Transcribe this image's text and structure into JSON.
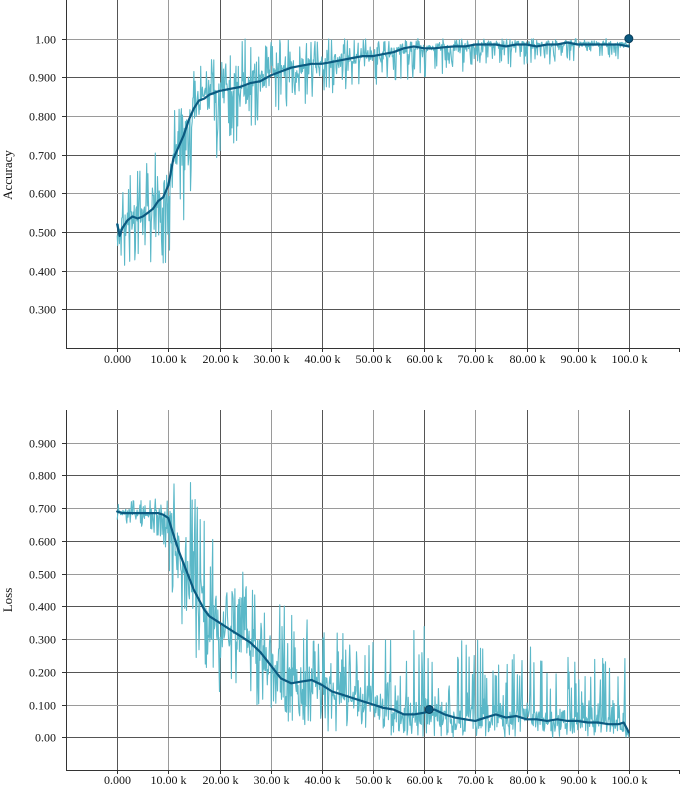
{
  "chart_data": [
    {
      "type": "line",
      "ylabel": "Accuracy",
      "xlabel": "",
      "x_tick_labels": [
        "0.000",
        "10.00 k",
        "20.00 k",
        "30.00 k",
        "40.00 k",
        "50.00 k",
        "60.00 k",
        "70.00 k",
        "80.00 k",
        "90.00 k",
        "100.0 k"
      ],
      "x_ticks": [
        0,
        10000,
        20000,
        30000,
        40000,
        50000,
        60000,
        70000,
        80000,
        90000,
        100000
      ],
      "y_tick_labels": [
        "0.300",
        "0.400",
        "0.500",
        "0.600",
        "0.700",
        "0.800",
        "0.900",
        "1.00"
      ],
      "y_ticks": [
        0.3,
        0.4,
        0.5,
        0.6,
        0.7,
        0.8,
        0.9,
        1.0
      ],
      "xlim": [
        -10000,
        110000
      ],
      "ylim": [
        0.2,
        1.1
      ],
      "grid": true,
      "colors": {
        "raw": "#5bb8c8",
        "smoothed": "#0b5a80"
      },
      "series": [
        {
          "role": "raw",
          "x_range": [
            0,
            100000
          ],
          "envelope_x": [
            0,
            2000,
            5000,
            8000,
            10000,
            12000,
            15000,
            18000,
            20000,
            25000,
            30000,
            35000,
            40000,
            45000,
            50000,
            60000,
            70000,
            80000,
            90000,
            100000
          ],
          "envelope_low": [
            0.38,
            0.4,
            0.42,
            0.42,
            0.42,
            0.48,
            0.6,
            0.65,
            0.7,
            0.75,
            0.8,
            0.82,
            0.85,
            0.87,
            0.88,
            0.9,
            0.92,
            0.93,
            0.94,
            0.95
          ],
          "envelope_high": [
            0.62,
            0.67,
            0.72,
            0.75,
            0.78,
            0.85,
            0.93,
            0.96,
            0.98,
            1.0,
            1.0,
            1.0,
            1.0,
            1.0,
            1.0,
            1.0,
            1.0,
            1.0,
            1.0,
            1.0
          ]
        },
        {
          "role": "smoothed",
          "x": [
            0,
            500,
            1000,
            2000,
            3000,
            4000,
            5000,
            6000,
            7000,
            8000,
            9000,
            10000,
            11000,
            12000,
            13000,
            14000,
            15000,
            16000,
            17000,
            18000,
            19000,
            20000,
            22000,
            24000,
            26000,
            28000,
            30000,
            32000,
            34000,
            36000,
            38000,
            40000,
            42000,
            44000,
            46000,
            48000,
            50000,
            52000,
            54000,
            56000,
            58000,
            60000,
            62000,
            64000,
            66000,
            68000,
            70000,
            72000,
            74000,
            76000,
            78000,
            80000,
            82000,
            84000,
            86000,
            88000,
            90000,
            92000,
            94000,
            96000,
            98000,
            100000
          ],
          "y": [
            0.52,
            0.49,
            0.51,
            0.53,
            0.54,
            0.535,
            0.54,
            0.55,
            0.56,
            0.58,
            0.59,
            0.62,
            0.69,
            0.72,
            0.75,
            0.79,
            0.82,
            0.84,
            0.845,
            0.855,
            0.86,
            0.865,
            0.87,
            0.875,
            0.885,
            0.89,
            0.905,
            0.915,
            0.925,
            0.93,
            0.935,
            0.935,
            0.94,
            0.945,
            0.95,
            0.955,
            0.955,
            0.96,
            0.965,
            0.975,
            0.98,
            0.975,
            0.975,
            0.978,
            0.98,
            0.98,
            0.985,
            0.985,
            0.985,
            0.98,
            0.985,
            0.985,
            0.98,
            0.985,
            0.985,
            0.99,
            0.985,
            0.985,
            0.985,
            0.985,
            0.985,
            0.98
          ]
        }
      ],
      "highlight_point": {
        "x": 100000,
        "y": 1.0
      }
    },
    {
      "type": "line",
      "ylabel": "Loss",
      "xlabel": "",
      "x_tick_labels": [
        "0.000",
        "10.00 k",
        "20.00 k",
        "30.00 k",
        "40.00 k",
        "50.00 k",
        "60.00 k",
        "70.00 k",
        "80.00 k",
        "90.00 k",
        "100.0 k"
      ],
      "x_ticks": [
        0,
        10000,
        20000,
        30000,
        40000,
        50000,
        60000,
        70000,
        80000,
        90000,
        100000
      ],
      "y_tick_labels": [
        "0.00",
        "0.100",
        "0.200",
        "0.300",
        "0.400",
        "0.500",
        "0.600",
        "0.700",
        "0.800",
        "0.900"
      ],
      "y_ticks": [
        0.0,
        0.1,
        0.2,
        0.3,
        0.4,
        0.5,
        0.6,
        0.7,
        0.8,
        0.9
      ],
      "xlim": [
        -10000,
        110000
      ],
      "ylim": [
        -0.1,
        1.0
      ],
      "grid": true,
      "colors": {
        "raw": "#5bb8c8",
        "smoothed": "#0b5a80"
      },
      "series": [
        {
          "role": "raw",
          "x_range": [
            0,
            100000
          ],
          "envelope_x": [
            0,
            5000,
            9000,
            10000,
            12000,
            15000,
            18000,
            20000,
            25000,
            30000,
            35000,
            40000,
            45000,
            50000,
            55000,
            60000,
            65000,
            70000,
            80000,
            90000,
            100000
          ],
          "envelope_low": [
            0.66,
            0.64,
            0.6,
            0.5,
            0.35,
            0.2,
            0.15,
            0.12,
            0.1,
            0.05,
            0.03,
            0.02,
            0.01,
            0.01,
            0.0,
            0.0,
            0.0,
            0.0,
            0.0,
            0.0,
            0.0
          ],
          "envelope_high": [
            0.72,
            0.74,
            0.75,
            0.9,
            0.75,
            0.8,
            0.7,
            0.6,
            0.5,
            0.45,
            0.4,
            0.35,
            0.32,
            0.3,
            0.3,
            0.35,
            0.3,
            0.3,
            0.28,
            0.25,
            0.25
          ]
        },
        {
          "role": "smoothed",
          "x": [
            0,
            1000,
            2000,
            4000,
            6000,
            8000,
            9000,
            10000,
            11000,
            12000,
            13000,
            14000,
            15000,
            16000,
            17000,
            18000,
            20000,
            22000,
            24000,
            26000,
            28000,
            30000,
            32000,
            34000,
            36000,
            38000,
            40000,
            42000,
            44000,
            46000,
            48000,
            50000,
            52000,
            54000,
            56000,
            58000,
            60000,
            62000,
            64000,
            66000,
            68000,
            70000,
            72000,
            74000,
            76000,
            78000,
            80000,
            82000,
            84000,
            86000,
            88000,
            90000,
            92000,
            94000,
            96000,
            98000,
            99000,
            100000
          ],
          "y": [
            0.69,
            0.685,
            0.685,
            0.685,
            0.685,
            0.685,
            0.68,
            0.67,
            0.62,
            0.57,
            0.53,
            0.49,
            0.45,
            0.42,
            0.39,
            0.37,
            0.35,
            0.33,
            0.31,
            0.29,
            0.26,
            0.22,
            0.18,
            0.165,
            0.17,
            0.175,
            0.16,
            0.14,
            0.13,
            0.12,
            0.11,
            0.1,
            0.09,
            0.085,
            0.07,
            0.07,
            0.075,
            0.085,
            0.07,
            0.06,
            0.055,
            0.05,
            0.06,
            0.07,
            0.06,
            0.065,
            0.055,
            0.055,
            0.05,
            0.055,
            0.05,
            0.05,
            0.045,
            0.045,
            0.04,
            0.04,
            0.045,
            0.015
          ]
        }
      ],
      "highlight_point": {
        "x": 61000,
        "y": 0.085
      }
    }
  ]
}
